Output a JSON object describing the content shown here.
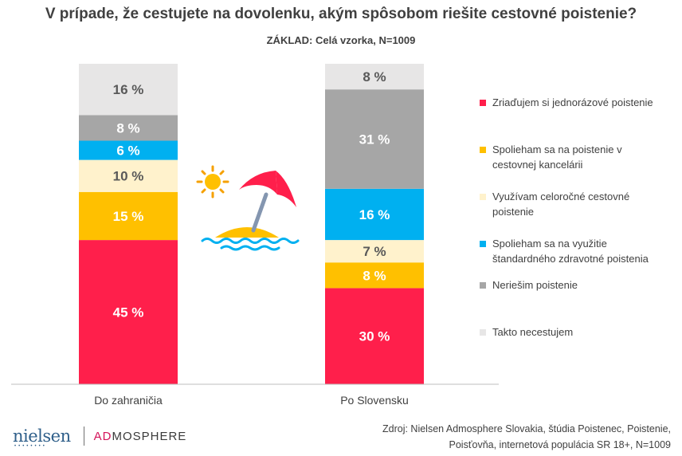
{
  "title": "V prípade, že cestujete na dovolenku, akým spôsobom riešite cestovné poistenie?",
  "subtitle": "ZÁKLAD: Celá vzorka, N=1009",
  "chart_data": {
    "type": "bar",
    "stacked": true,
    "unit": "%",
    "categories": [
      "Do zahraničia",
      "Po Slovensku"
    ],
    "series": [
      {
        "name": "Zriaďujem si jednorázové poistenie",
        "color": "#ff1f4b",
        "label_color": "#ffffff",
        "values": [
          45,
          30
        ],
        "labels": [
          "45 %",
          "30 %"
        ]
      },
      {
        "name": "Spolieham sa na poistenie v cestovnej kancelárii",
        "color": "#ffc000",
        "label_color": "#ffffff",
        "values": [
          15,
          8
        ],
        "labels": [
          "15 %",
          "8 %"
        ]
      },
      {
        "name": "Využívam celoročné cestovné poistenie",
        "color": "#fff2cc",
        "label_color": "#595959",
        "values": [
          10,
          7
        ],
        "labels": [
          "10 %",
          "7 %"
        ]
      },
      {
        "name": "Spolieham sa na využitie štandardného zdravotné poistenia",
        "color": "#00b0f0",
        "label_color": "#ffffff",
        "values": [
          6,
          16
        ],
        "labels": [
          "6 %",
          "16 %"
        ]
      },
      {
        "name": "Neriešim poistenie",
        "color": "#a6a6a6",
        "label_color": "#ffffff",
        "values": [
          8,
          31
        ],
        "labels": [
          "8 %",
          "31 %"
        ]
      },
      {
        "name": "Takto necestujem",
        "color": "#e7e6e6",
        "label_color": "#595959",
        "values": [
          16,
          8
        ],
        "labels": [
          "16 %",
          "8 %"
        ]
      }
    ],
    "ylim": [
      0,
      100
    ],
    "legend_position": "right"
  },
  "legend": {
    "items": [
      {
        "label_lines": [
          "Zriaďujem si jednorázové poistenie"
        ],
        "color": "#ff1f4b"
      },
      {
        "label_lines": [
          "Spolieham sa na poistenie v",
          "cestovnej kancelárii"
        ],
        "color": "#ffc000"
      },
      {
        "label_lines": [
          "Využívam celoročné cestovné",
          "poistenie"
        ],
        "color": "#fff2cc"
      },
      {
        "label_lines": [
          "Spolieham sa na využitie",
          "štandardného zdravotné poistenia"
        ],
        "color": "#00b0f0"
      },
      {
        "label_lines": [
          "Neriešim poistenie"
        ],
        "color": "#a6a6a6"
      },
      {
        "label_lines": [
          "Takto necestujem"
        ],
        "color": "#e7e6e6"
      }
    ]
  },
  "footer": {
    "logo": {
      "left": "nielsen",
      "right_accent": "AD",
      "right_rest": "MOSPHERE"
    },
    "source_line1": "Zdroj: Nielsen Admosphere Slovakia, štúdia Poistenec, Poistenie,",
    "source_line2": "Poisťovňa, internetová populácia SR 18+, N=1009"
  }
}
